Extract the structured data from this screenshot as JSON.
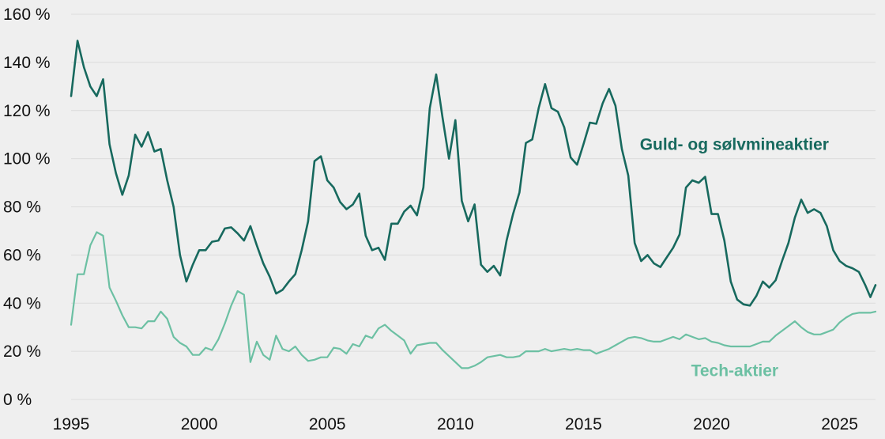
{
  "chart_data": {
    "type": "line",
    "title": "",
    "xlabel": "",
    "ylabel": "",
    "xlim": [
      1995,
      2026.4
    ],
    "ylim": [
      0,
      160
    ],
    "y_unit": "%",
    "grid": "horizontal",
    "y_ticks": [
      "0 %",
      "20 %",
      "40 %",
      "60 %",
      "80 %",
      "100 %",
      "120 %",
      "140 %",
      "160 %"
    ],
    "x_ticks": [
      "1995",
      "2000",
      "2005",
      "2010",
      "2015",
      "2020",
      "2025"
    ],
    "series": [
      {
        "name": "Guld- og sølvmineaktier",
        "color": "#17695e",
        "label_anchor": [
          2017.2,
          106
        ],
        "points": [
          [
            1995.0,
            126
          ],
          [
            1995.25,
            149
          ],
          [
            1995.5,
            138
          ],
          [
            1995.75,
            130
          ],
          [
            1996.0,
            126
          ],
          [
            1996.25,
            133
          ],
          [
            1996.5,
            106
          ],
          [
            1996.75,
            94
          ],
          [
            1997.0,
            85
          ],
          [
            1997.25,
            93
          ],
          [
            1997.5,
            110
          ],
          [
            1997.75,
            105
          ],
          [
            1998.0,
            111
          ],
          [
            1998.25,
            103
          ],
          [
            1998.5,
            104
          ],
          [
            1998.75,
            91
          ],
          [
            1999.0,
            80
          ],
          [
            1999.25,
            60
          ],
          [
            1999.5,
            49
          ],
          [
            1999.75,
            56
          ],
          [
            2000.0,
            62
          ],
          [
            2000.25,
            62
          ],
          [
            2000.5,
            65.5
          ],
          [
            2000.75,
            66
          ],
          [
            2001.0,
            71
          ],
          [
            2001.25,
            71.5
          ],
          [
            2001.5,
            69
          ],
          [
            2001.75,
            66
          ],
          [
            2002.0,
            72
          ],
          [
            2002.25,
            64
          ],
          [
            2002.5,
            56.5
          ],
          [
            2002.75,
            51
          ],
          [
            2003.0,
            44
          ],
          [
            2003.25,
            45.5
          ],
          [
            2003.5,
            49
          ],
          [
            2003.75,
            52
          ],
          [
            2004.0,
            62
          ],
          [
            2004.25,
            74
          ],
          [
            2004.5,
            99
          ],
          [
            2004.75,
            101
          ],
          [
            2005.0,
            91
          ],
          [
            2005.25,
            88
          ],
          [
            2005.5,
            82
          ],
          [
            2005.75,
            79
          ],
          [
            2006.0,
            81
          ],
          [
            2006.25,
            85.5
          ],
          [
            2006.5,
            68
          ],
          [
            2006.75,
            62
          ],
          [
            2007.0,
            63
          ],
          [
            2007.25,
            58
          ],
          [
            2007.5,
            73
          ],
          [
            2007.75,
            73
          ],
          [
            2008.0,
            78
          ],
          [
            2008.25,
            80.5
          ],
          [
            2008.5,
            76.5
          ],
          [
            2008.75,
            88
          ],
          [
            2009.0,
            121
          ],
          [
            2009.25,
            135
          ],
          [
            2009.5,
            117
          ],
          [
            2009.75,
            100
          ],
          [
            2010.0,
            116
          ],
          [
            2010.25,
            82.5
          ],
          [
            2010.5,
            74
          ],
          [
            2010.75,
            81
          ],
          [
            2011.0,
            56
          ],
          [
            2011.25,
            53
          ],
          [
            2011.5,
            55.5
          ],
          [
            2011.75,
            51.5
          ],
          [
            2012.0,
            66
          ],
          [
            2012.25,
            77
          ],
          [
            2012.5,
            86
          ],
          [
            2012.75,
            106.5
          ],
          [
            2013.0,
            108
          ],
          [
            2013.25,
            121
          ],
          [
            2013.5,
            131
          ],
          [
            2013.75,
            121
          ],
          [
            2014.0,
            119.5
          ],
          [
            2014.25,
            113
          ],
          [
            2014.5,
            100.5
          ],
          [
            2014.75,
            97.5
          ],
          [
            2015.0,
            106
          ],
          [
            2015.25,
            115
          ],
          [
            2015.5,
            114.5
          ],
          [
            2015.75,
            123
          ],
          [
            2016.0,
            129
          ],
          [
            2016.25,
            122
          ],
          [
            2016.5,
            104
          ],
          [
            2016.75,
            93
          ],
          [
            2017.0,
            65
          ],
          [
            2017.25,
            57.5
          ],
          [
            2017.5,
            60
          ],
          [
            2017.75,
            56.5
          ],
          [
            2018.0,
            55
          ],
          [
            2018.25,
            59
          ],
          [
            2018.5,
            63
          ],
          [
            2018.75,
            68.5
          ],
          [
            2019.0,
            88
          ],
          [
            2019.25,
            91
          ],
          [
            2019.5,
            90
          ],
          [
            2019.75,
            92.5
          ],
          [
            2020.0,
            77
          ],
          [
            2020.25,
            77
          ],
          [
            2020.5,
            66
          ],
          [
            2020.75,
            49
          ],
          [
            2021.0,
            41.5
          ],
          [
            2021.25,
            39.5
          ],
          [
            2021.5,
            39
          ],
          [
            2021.75,
            43
          ],
          [
            2022.0,
            49
          ],
          [
            2022.25,
            46.5
          ],
          [
            2022.5,
            49.5
          ],
          [
            2022.75,
            57.5
          ],
          [
            2023.0,
            65
          ],
          [
            2023.25,
            75.5
          ],
          [
            2023.5,
            83
          ],
          [
            2023.75,
            77.5
          ],
          [
            2024.0,
            79
          ],
          [
            2024.25,
            77.5
          ],
          [
            2024.5,
            72
          ],
          [
            2024.75,
            62
          ],
          [
            2025.0,
            57.5
          ],
          [
            2025.25,
            55.5
          ],
          [
            2025.5,
            54.5
          ],
          [
            2025.75,
            53
          ],
          [
            2026.0,
            47.5
          ],
          [
            2026.2,
            42.5
          ],
          [
            2026.4,
            47.5
          ]
        ]
      },
      {
        "name": "Tech-aktier",
        "color": "#6cc0a3",
        "label_anchor": [
          2019.2,
          12
        ],
        "points": [
          [
            1995.0,
            31
          ],
          [
            1995.25,
            52
          ],
          [
            1995.5,
            52
          ],
          [
            1995.75,
            64
          ],
          [
            1996.0,
            69.5
          ],
          [
            1996.25,
            68
          ],
          [
            1996.5,
            46.5
          ],
          [
            1996.75,
            41
          ],
          [
            1997.0,
            35
          ],
          [
            1997.25,
            30
          ],
          [
            1997.5,
            30
          ],
          [
            1997.75,
            29.5
          ],
          [
            1998.0,
            32.5
          ],
          [
            1998.25,
            32.5
          ],
          [
            1998.5,
            36.5
          ],
          [
            1998.75,
            33.5
          ],
          [
            1999.0,
            26
          ],
          [
            1999.25,
            23.5
          ],
          [
            1999.5,
            22
          ],
          [
            1999.75,
            18.5
          ],
          [
            2000.0,
            18.5
          ],
          [
            2000.25,
            21.5
          ],
          [
            2000.5,
            20.5
          ],
          [
            2000.75,
            25
          ],
          [
            2001.0,
            31.5
          ],
          [
            2001.25,
            39
          ],
          [
            2001.5,
            45
          ],
          [
            2001.75,
            43.5
          ],
          [
            2002.0,
            15.5
          ],
          [
            2002.25,
            24
          ],
          [
            2002.5,
            18.5
          ],
          [
            2002.75,
            16.5
          ],
          [
            2003.0,
            26.5
          ],
          [
            2003.25,
            21
          ],
          [
            2003.5,
            20
          ],
          [
            2003.75,
            22
          ],
          [
            2004.0,
            18.5
          ],
          [
            2004.25,
            16
          ],
          [
            2004.5,
            16.5
          ],
          [
            2004.75,
            17.5
          ],
          [
            2005.0,
            17.5
          ],
          [
            2005.25,
            21.5
          ],
          [
            2005.5,
            21
          ],
          [
            2005.75,
            19
          ],
          [
            2006.0,
            23
          ],
          [
            2006.25,
            22
          ],
          [
            2006.5,
            26.5
          ],
          [
            2006.75,
            25.5
          ],
          [
            2007.0,
            29.5
          ],
          [
            2007.25,
            31
          ],
          [
            2007.5,
            28.5
          ],
          [
            2007.75,
            26.5
          ],
          [
            2008.0,
            24.5
          ],
          [
            2008.25,
            19
          ],
          [
            2008.5,
            22.5
          ],
          [
            2008.75,
            23
          ],
          [
            2009.0,
            23.5
          ],
          [
            2009.25,
            23.5
          ],
          [
            2009.5,
            20.5
          ],
          [
            2009.75,
            18
          ],
          [
            2010.0,
            15.5
          ],
          [
            2010.25,
            13
          ],
          [
            2010.5,
            13
          ],
          [
            2010.75,
            14
          ],
          [
            2011.0,
            15.5
          ],
          [
            2011.25,
            17.5
          ],
          [
            2011.5,
            18
          ],
          [
            2011.75,
            18.5
          ],
          [
            2012.0,
            17.5
          ],
          [
            2012.25,
            17.5
          ],
          [
            2012.5,
            18
          ],
          [
            2012.75,
            20
          ],
          [
            2013.0,
            20
          ],
          [
            2013.25,
            20
          ],
          [
            2013.5,
            21
          ],
          [
            2013.75,
            20
          ],
          [
            2014.0,
            20.5
          ],
          [
            2014.25,
            21
          ],
          [
            2014.5,
            20.5
          ],
          [
            2014.75,
            21
          ],
          [
            2015.0,
            20.5
          ],
          [
            2015.25,
            20.5
          ],
          [
            2015.5,
            19
          ],
          [
            2015.75,
            20
          ],
          [
            2016.0,
            21
          ],
          [
            2016.25,
            22.5
          ],
          [
            2016.5,
            24
          ],
          [
            2016.75,
            25.5
          ],
          [
            2017.0,
            26
          ],
          [
            2017.25,
            25.5
          ],
          [
            2017.5,
            24.5
          ],
          [
            2017.75,
            24
          ],
          [
            2018.0,
            24
          ],
          [
            2018.25,
            25
          ],
          [
            2018.5,
            26
          ],
          [
            2018.75,
            25
          ],
          [
            2019.0,
            27
          ],
          [
            2019.25,
            26
          ],
          [
            2019.5,
            25
          ],
          [
            2019.75,
            25.5
          ],
          [
            2020.0,
            24
          ],
          [
            2020.25,
            23.5
          ],
          [
            2020.5,
            22.5
          ],
          [
            2020.75,
            22
          ],
          [
            2021.0,
            22
          ],
          [
            2021.25,
            22
          ],
          [
            2021.5,
            22
          ],
          [
            2021.75,
            23
          ],
          [
            2022.0,
            24
          ],
          [
            2022.25,
            24
          ],
          [
            2022.5,
            26.5
          ],
          [
            2022.75,
            28.5
          ],
          [
            2023.0,
            30.5
          ],
          [
            2023.25,
            32.5
          ],
          [
            2023.5,
            30
          ],
          [
            2023.75,
            28
          ],
          [
            2024.0,
            27
          ],
          [
            2024.25,
            27
          ],
          [
            2024.5,
            28
          ],
          [
            2024.75,
            29
          ],
          [
            2025.0,
            32
          ],
          [
            2025.25,
            34
          ],
          [
            2025.5,
            35.5
          ],
          [
            2025.75,
            36
          ],
          [
            2026.0,
            36
          ],
          [
            2026.2,
            36
          ],
          [
            2026.4,
            36.5
          ]
        ]
      }
    ]
  }
}
